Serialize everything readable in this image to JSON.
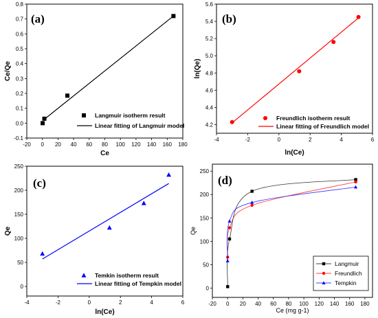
{
  "chart_data": [
    {
      "panel_label": "(a)",
      "type": "scatter",
      "xlabel": "Ce",
      "ylabel": "Ce/Qe",
      "xlim": [
        -20,
        180
      ],
      "ylim": [
        -0.1,
        0.8
      ],
      "xticks": [
        "-20",
        "0",
        "20",
        "40",
        "60",
        "80",
        "100",
        "120",
        "140",
        "160",
        "180"
      ],
      "yticks": [
        "-0.1",
        "0.0",
        "0.1",
        "0.2",
        "0.3",
        "0.4",
        "0.5",
        "0.6",
        "0.7",
        "0.8"
      ],
      "series": [
        {
          "name": "Langmuir isotherm result",
          "kind": "points",
          "marker": "square",
          "color": "#000000",
          "x": [
            0.3,
            2.5,
            32,
            168
          ],
          "y": [
            0.0,
            0.03,
            0.185,
            0.72
          ]
        },
        {
          "name": "Linear fitting of Langmuir model",
          "kind": "line",
          "color": "#000000",
          "x": [
            1,
            168
          ],
          "y": [
            0.02,
            0.72
          ]
        }
      ],
      "legend_position": "bottom-right"
    },
    {
      "panel_label": "(b)",
      "type": "scatter",
      "xlabel": "ln(Ce)",
      "ylabel": "ln(Qe)",
      "xlim": [
        -4,
        6
      ],
      "ylim": [
        4.1,
        5.6
      ],
      "xticks": [
        "-4",
        "-2",
        "0",
        "2",
        "4",
        "6"
      ],
      "yticks": [
        "4.2",
        "4.4",
        "4.6",
        "4.8",
        "5.0",
        "5.2",
        "5.4",
        "5.6"
      ],
      "series": [
        {
          "name": "Freundlich isotherm result",
          "kind": "points",
          "marker": "circle",
          "color": "#ff0000",
          "x": [
            -3.0,
            1.3,
            3.5,
            5.1
          ],
          "y": [
            4.23,
            4.82,
            5.16,
            5.45
          ]
        },
        {
          "name": "Linear fitting of Freundlich model",
          "kind": "line",
          "color": "#ff0000",
          "x": [
            -3.0,
            5.1
          ],
          "y": [
            4.22,
            5.44
          ]
        }
      ],
      "legend_position": "bottom-right"
    },
    {
      "panel_label": "(c)",
      "type": "scatter",
      "xlabel": "ln(Ce)",
      "ylabel": "Qe",
      "xlim": [
        -4,
        6
      ],
      "ylim": [
        -20,
        250
      ],
      "xticks": [
        "-4",
        "-2",
        "0",
        "2",
        "4",
        "6"
      ],
      "yticks": [
        "0",
        "50",
        "100",
        "150",
        "200",
        "250"
      ],
      "series": [
        {
          "name": "Temkin isotherm result",
          "kind": "points",
          "marker": "triangle",
          "color": "#0000ff",
          "x": [
            -3.0,
            1.3,
            3.5,
            5.1
          ],
          "y": [
            68,
            122,
            173,
            232
          ]
        },
        {
          "name": "Linear fitting of Tempkin model",
          "kind": "line",
          "color": "#0000ff",
          "x": [
            -3.0,
            5.1
          ],
          "y": [
            57,
            214
          ]
        }
      ],
      "legend_position": "bottom-left"
    },
    {
      "panel_label": "(d)",
      "type": "line",
      "xlabel": "Ce (mg g-1)",
      "ylabel": "Qe",
      "xlim": [
        -20,
        190
      ],
      "ylim": [
        -20,
        265
      ],
      "xticks": [
        "-20",
        "0",
        "20",
        "40",
        "60",
        "80",
        "100",
        "120",
        "140",
        "160",
        "180"
      ],
      "yticks": [
        "0",
        "50",
        "100",
        "150",
        "200",
        "250"
      ],
      "series": [
        {
          "name": "Langmuir",
          "marker": "square",
          "color": "#000000",
          "x": [
            0.05,
            2.5,
            32,
            168
          ],
          "y": [
            3,
            105,
            207,
            232
          ]
        },
        {
          "name": "Freundlich",
          "marker": "circle",
          "color": "#ff0000",
          "x": [
            0.05,
            2.5,
            32,
            168
          ],
          "y": [
            66,
            129,
            177,
            227
          ]
        },
        {
          "name": "Tempkin",
          "marker": "triangle",
          "color": "#0000ff",
          "x": [
            0.05,
            2.5,
            32,
            168
          ],
          "y": [
            58,
            143,
            183,
            216
          ]
        }
      ],
      "legend_position": "bottom-right"
    }
  ]
}
